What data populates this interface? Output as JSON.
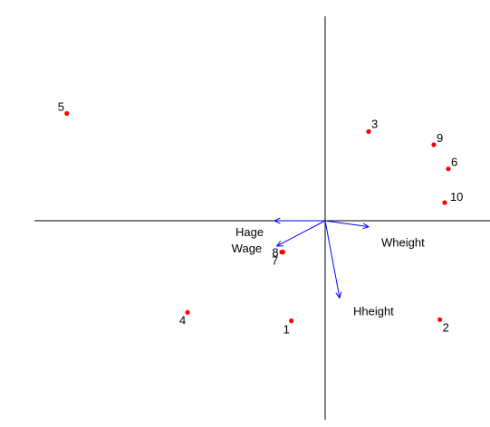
{
  "chart_data": {
    "type": "scatter",
    "title": "",
    "xlabel": "",
    "ylabel": "",
    "grid": false,
    "legend": "none",
    "xlim": [
      -2.75,
      1.25
    ],
    "ylim": [
      -1.65,
      1.65
    ],
    "point_color": "#ff0000",
    "arrow_color": "#0000ff",
    "points": [
      {
        "label": "1",
        "x": -0.28,
        "y": -0.83
      },
      {
        "label": "2",
        "x": 0.95,
        "y": -0.82
      },
      {
        "label": "3",
        "x": 0.36,
        "y": 0.74
      },
      {
        "label": "4",
        "x": -1.14,
        "y": -0.76
      },
      {
        "label": "5",
        "x": -2.14,
        "y": 0.89
      },
      {
        "label": "6",
        "x": 1.02,
        "y": 0.43
      },
      {
        "label": "7",
        "x": -0.36,
        "y": -0.26
      },
      {
        "label": "8",
        "x": -0.35,
        "y": -0.26
      },
      {
        "label": "9",
        "x": 0.9,
        "y": 0.63
      },
      {
        "label": "10",
        "x": 0.99,
        "y": 0.15
      }
    ],
    "vectors": [
      {
        "label": "Hage",
        "x": -0.42,
        "y": 0.0
      },
      {
        "label": "Wage",
        "x": -0.4,
        "y": -0.21
      },
      {
        "label": "Wheight",
        "x": 0.36,
        "y": -0.05
      },
      {
        "label": "Hheight",
        "x": 0.12,
        "y": -0.64
      }
    ]
  }
}
